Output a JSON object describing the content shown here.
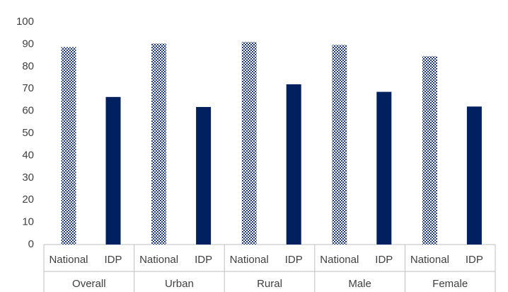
{
  "chart_data": {
    "type": "bar",
    "categories": [
      "Overall",
      "Urban",
      "Rural",
      "Male",
      "Female"
    ],
    "series": [
      {
        "name": "National",
        "color": "#1f3a7a",
        "pattern": "dots",
        "values": [
          88.7,
          90.3,
          91,
          89.7,
          84.6
        ]
      },
      {
        "name": "IDP",
        "color": "#002060",
        "values": [
          66.3,
          61.8,
          72,
          68.6,
          62
        ]
      }
    ],
    "ylim": [
      0,
      100
    ],
    "yticks": [
      0,
      10,
      20,
      30,
      40,
      50,
      60,
      70,
      80,
      90,
      100
    ],
    "grid": false
  }
}
